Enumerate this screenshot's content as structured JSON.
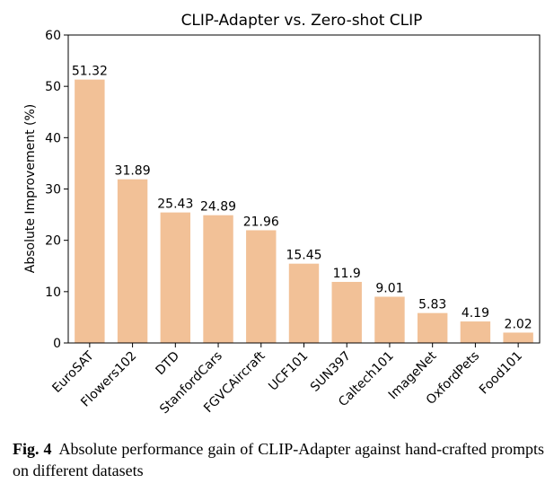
{
  "chart_data": {
    "type": "bar",
    "title": "CLIP-Adapter vs. Zero-shot CLIP",
    "xlabel": "",
    "ylabel": "Absolute Improvement (%)",
    "ylim": [
      0,
      60
    ],
    "yticks": [
      0,
      10,
      20,
      30,
      40,
      50,
      60
    ],
    "categories": [
      "EuroSAT",
      "Flowers102",
      "DTD",
      "StanfordCars",
      "FGVCAircraft",
      "UCF101",
      "SUN397",
      "Caltech101",
      "ImageNet",
      "OxfordPets",
      "Food101"
    ],
    "values": [
      51.32,
      31.89,
      25.43,
      24.89,
      21.96,
      15.45,
      11.9,
      9.01,
      5.83,
      4.19,
      2.02
    ],
    "value_labels": [
      "51.32",
      "31.89",
      "25.43",
      "24.89",
      "21.96",
      "15.45",
      "11.9",
      "9.01",
      "5.83",
      "4.19",
      "2.02"
    ],
    "bar_color": "#f2c197",
    "grid": false,
    "legend": "none"
  },
  "caption": {
    "figure_number": "Fig. 4",
    "text": "Absolute performance gain of CLIP-Adapter against hand-crafted prompts on different datasets"
  }
}
